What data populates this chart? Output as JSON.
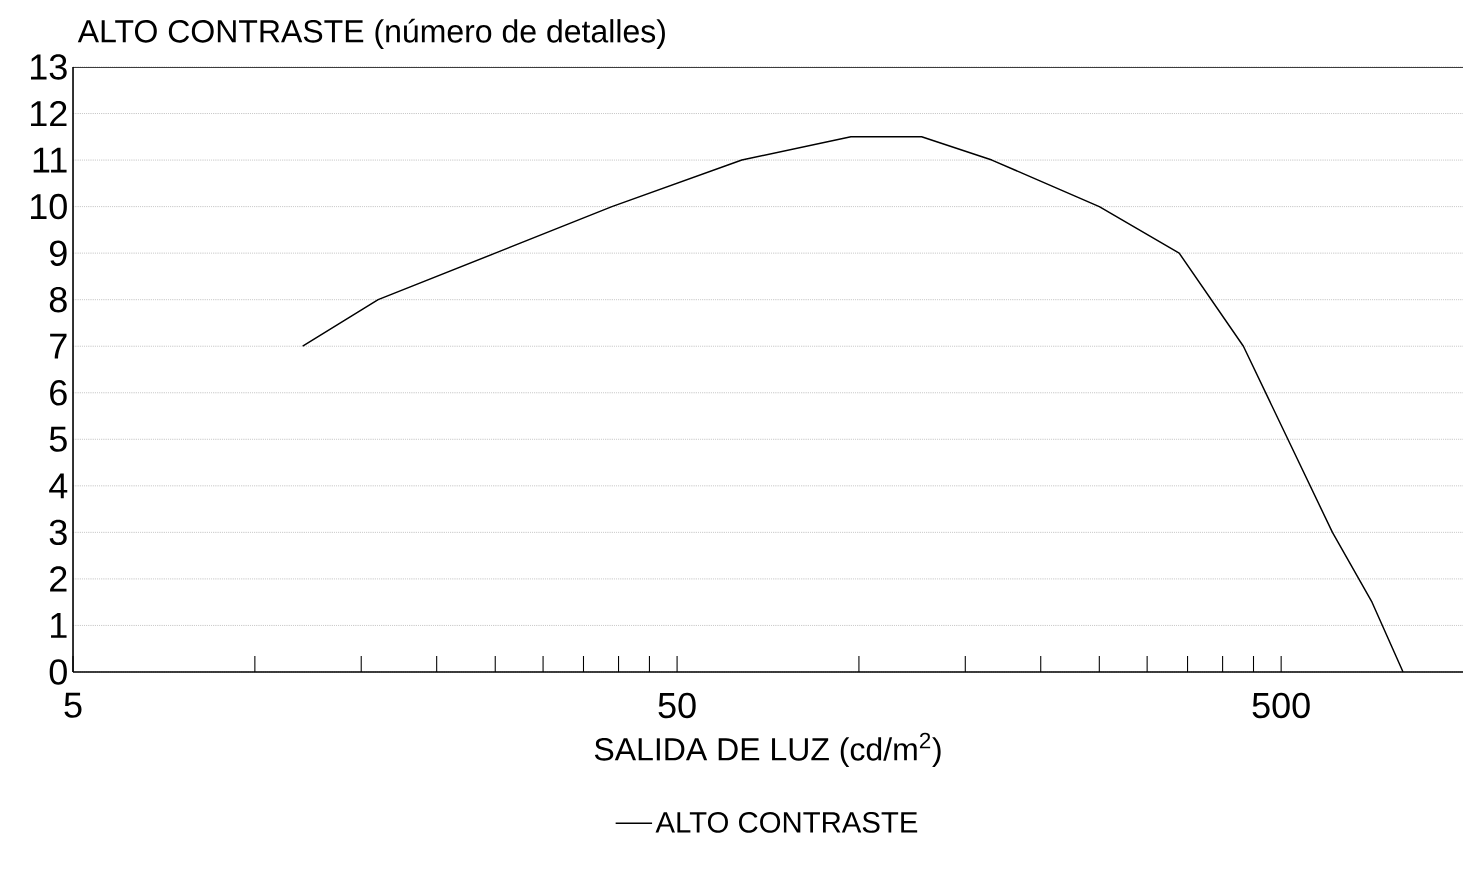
{
  "chart_data": {
    "type": "line",
    "title": "ALTO CONTRASTE (número de detalles)",
    "xlabel": "SALIDA DE LUZ (cd/m$^{2}$)",
    "log": "x",
    "xlim": [
      5,
      1000
    ],
    "ylim": [
      0,
      13
    ],
    "xticks": [
      5,
      {
        "value": 10,
        "label": null
      },
      {
        "value": 15,
        "label": null
      },
      {
        "value": 20,
        "label": null
      },
      {
        "value": 25,
        "label": null
      },
      {
        "value": 30,
        "label": null
      },
      {
        "value": 35,
        "label": null
      },
      {
        "value": 40,
        "label": null
      },
      {
        "value": 45,
        "label": null
      },
      50,
      {
        "value": 100,
        "label": null
      },
      {
        "value": 150,
        "label": null
      },
      {
        "value": 200,
        "label": null
      },
      {
        "value": 250,
        "label": null
      },
      {
        "value": 300,
        "label": null
      },
      {
        "value": 350,
        "label": null
      },
      {
        "value": 400,
        "label": null
      },
      {
        "value": 450,
        "label": null
      },
      500
    ],
    "yticks": [
      0,
      1,
      2,
      3,
      4,
      5,
      6,
      7,
      8,
      9,
      10,
      11,
      12,
      13
    ],
    "grid": "y",
    "legend": "bottom",
    "marker": "none",
    "line_style": "solid",
    "series": [
      {
        "name": "ALTO CONTRASTE",
        "color": "#000000",
        "x": [
          12,
          16,
          25,
          39,
          64,
          97,
          127,
          166,
          250,
          339,
          433,
          513,
          608,
          707,
          796
        ],
        "values": [
          7,
          8,
          9,
          10,
          11,
          11.5,
          11.5,
          11,
          10,
          9,
          7,
          5,
          3,
          1.5,
          0
        ]
      }
    ]
  }
}
